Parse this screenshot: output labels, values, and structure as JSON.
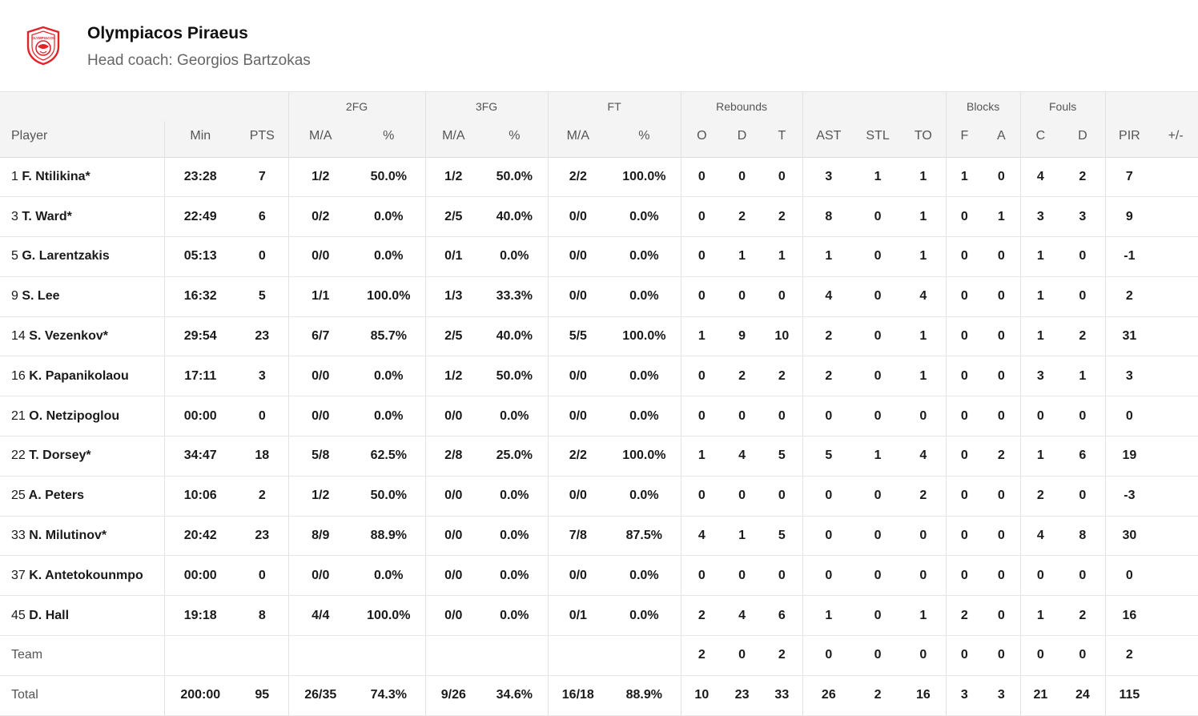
{
  "team": {
    "name": "Olympiacos Piraeus",
    "coach": "Head coach: Georgios Bartzokas",
    "logo_text": "OLYMPIACOS",
    "logo_color": "#e2232a"
  },
  "groups": {
    "fg2": "2FG",
    "fg3": "3FG",
    "ft": "FT",
    "reb": "Rebounds",
    "blk": "Blocks",
    "fouls": "Fouls"
  },
  "columns": [
    "Player",
    "Min",
    "PTS",
    "M/A",
    "%",
    "M/A",
    "%",
    "M/A",
    "%",
    "O",
    "D",
    "T",
    "AST",
    "STL",
    "TO",
    "F",
    "A",
    "C",
    "D",
    "PIR",
    "+/-"
  ],
  "players": [
    {
      "num": "1",
      "name": "F. Ntilikina*",
      "stats": [
        "23:28",
        "7",
        "1/2",
        "50.0%",
        "1/2",
        "50.0%",
        "2/2",
        "100.0%",
        "0",
        "0",
        "0",
        "3",
        "1",
        "1",
        "1",
        "0",
        "4",
        "2",
        "7",
        ""
      ]
    },
    {
      "num": "3",
      "name": "T. Ward*",
      "stats": [
        "22:49",
        "6",
        "0/2",
        "0.0%",
        "2/5",
        "40.0%",
        "0/0",
        "0.0%",
        "0",
        "2",
        "2",
        "8",
        "0",
        "1",
        "0",
        "1",
        "3",
        "3",
        "9",
        ""
      ]
    },
    {
      "num": "5",
      "name": "G. Larentzakis",
      "stats": [
        "05:13",
        "0",
        "0/0",
        "0.0%",
        "0/1",
        "0.0%",
        "0/0",
        "0.0%",
        "0",
        "1",
        "1",
        "1",
        "0",
        "1",
        "0",
        "0",
        "1",
        "0",
        "-1",
        ""
      ]
    },
    {
      "num": "9",
      "name": "S. Lee",
      "stats": [
        "16:32",
        "5",
        "1/1",
        "100.0%",
        "1/3",
        "33.3%",
        "0/0",
        "0.0%",
        "0",
        "0",
        "0",
        "4",
        "0",
        "4",
        "0",
        "0",
        "1",
        "0",
        "2",
        ""
      ]
    },
    {
      "num": "14",
      "name": "S. Vezenkov*",
      "stats": [
        "29:54",
        "23",
        "6/7",
        "85.7%",
        "2/5",
        "40.0%",
        "5/5",
        "100.0%",
        "1",
        "9",
        "10",
        "2",
        "0",
        "1",
        "0",
        "0",
        "1",
        "2",
        "31",
        ""
      ]
    },
    {
      "num": "16",
      "name": "K. Papanikolaou",
      "stats": [
        "17:11",
        "3",
        "0/0",
        "0.0%",
        "1/2",
        "50.0%",
        "0/0",
        "0.0%",
        "0",
        "2",
        "2",
        "2",
        "0",
        "1",
        "0",
        "0",
        "3",
        "1",
        "3",
        ""
      ]
    },
    {
      "num": "21",
      "name": "O. Netzipoglou",
      "stats": [
        "00:00",
        "0",
        "0/0",
        "0.0%",
        "0/0",
        "0.0%",
        "0/0",
        "0.0%",
        "0",
        "0",
        "0",
        "0",
        "0",
        "0",
        "0",
        "0",
        "0",
        "0",
        "0",
        ""
      ]
    },
    {
      "num": "22",
      "name": "T. Dorsey*",
      "stats": [
        "34:47",
        "18",
        "5/8",
        "62.5%",
        "2/8",
        "25.0%",
        "2/2",
        "100.0%",
        "1",
        "4",
        "5",
        "5",
        "1",
        "4",
        "0",
        "2",
        "1",
        "6",
        "19",
        ""
      ]
    },
    {
      "num": "25",
      "name": "A. Peters",
      "stats": [
        "10:06",
        "2",
        "1/2",
        "50.0%",
        "0/0",
        "0.0%",
        "0/0",
        "0.0%",
        "0",
        "0",
        "0",
        "0",
        "0",
        "2",
        "0",
        "0",
        "2",
        "0",
        "-3",
        ""
      ]
    },
    {
      "num": "33",
      "name": "N. Milutinov*",
      "stats": [
        "20:42",
        "23",
        "8/9",
        "88.9%",
        "0/0",
        "0.0%",
        "7/8",
        "87.5%",
        "4",
        "1",
        "5",
        "0",
        "0",
        "0",
        "0",
        "0",
        "4",
        "8",
        "30",
        ""
      ]
    },
    {
      "num": "37",
      "name": "K. Antetokounmpo",
      "stats": [
        "00:00",
        "0",
        "0/0",
        "0.0%",
        "0/0",
        "0.0%",
        "0/0",
        "0.0%",
        "0",
        "0",
        "0",
        "0",
        "0",
        "0",
        "0",
        "0",
        "0",
        "0",
        "0",
        ""
      ]
    },
    {
      "num": "45",
      "name": "D. Hall",
      "stats": [
        "19:18",
        "8",
        "4/4",
        "100.0%",
        "0/0",
        "0.0%",
        "0/1",
        "0.0%",
        "2",
        "4",
        "6",
        "1",
        "0",
        "1",
        "2",
        "0",
        "1",
        "2",
        "16",
        ""
      ]
    }
  ],
  "team_row": {
    "label": "Team",
    "stats": [
      "",
      "",
      "",
      "",
      "",
      "",
      "",
      "",
      "2",
      "0",
      "2",
      "0",
      "0",
      "0",
      "0",
      "0",
      "0",
      "0",
      "2",
      ""
    ]
  },
  "total_row": {
    "label": "Total",
    "stats": [
      "200:00",
      "95",
      "26/35",
      "74.3%",
      "9/26",
      "34.6%",
      "16/18",
      "88.9%",
      "10",
      "23",
      "33",
      "26",
      "2",
      "16",
      "3",
      "3",
      "21",
      "24",
      "115",
      ""
    ]
  }
}
